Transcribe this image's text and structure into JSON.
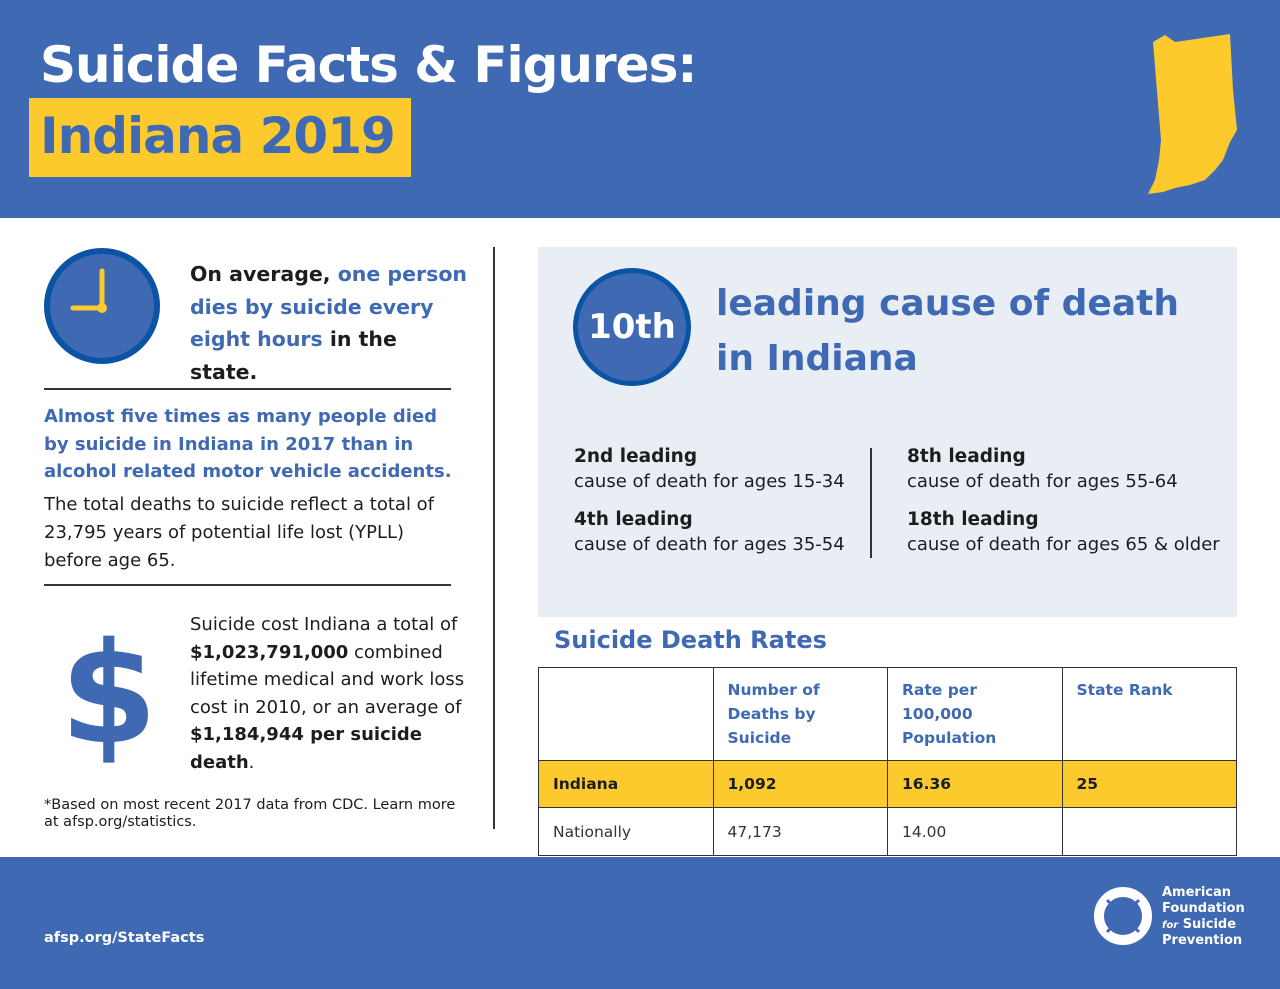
{
  "header": {
    "title": "Suicide Facts & Figures:",
    "subtitle": "Indiana 2019 *",
    "state_icon": "indiana-state-map-icon"
  },
  "colors": {
    "brand_blue": "#3f69b3",
    "accent_yellow": "#fdca2e",
    "dark_blue": "#0a53a5",
    "panel": "#e9eef5"
  },
  "clock_stat": {
    "icon": "clock-icon",
    "lead": "On average, ",
    "highlight": "one person dies by suicide every eight hours",
    "tail": " in the state."
  },
  "alcohol_stat": {
    "headline": "Almost five times as many people died by suicide in Indiana in 2017 than in alcohol related motor vehicle accidents.",
    "body": "The total deaths to suicide reflect a total of 23,795 years of potential life lost (YPLL) before age 65."
  },
  "cost_stat": {
    "icon": "dollar-icon",
    "p1": "Suicide cost Indiana a total of ",
    "total": "$1,023,791,000",
    "p2": " combined lifetime medical and work loss cost in 2010, or an average of ",
    "average": "$1,184,944 per suicide death",
    "p3": "."
  },
  "footnote": "*Based on most recent 2017 data from CDC. Learn more at afsp.org/statistics.",
  "rank": {
    "value": "10th",
    "text": "leading cause of death in Indiana"
  },
  "age_ranks": [
    {
      "rank": "2nd leading",
      "desc": "cause of death for ages 15-34"
    },
    {
      "rank": "4th leading",
      "desc": "cause of death for ages 35-54"
    },
    {
      "rank": "8th leading",
      "desc": "cause of death for ages 55-64"
    },
    {
      "rank": "18th leading",
      "desc": "cause of death for ages 65 & older"
    }
  ],
  "rates": {
    "title": "Suicide Death Rates",
    "columns": [
      "",
      "Number of Deaths by Suicide",
      "Rate per 100,000 Population",
      "State Rank"
    ],
    "rows": [
      [
        "Indiana",
        "1,092",
        "16.36",
        "25"
      ],
      [
        "Nationally",
        "47,173",
        "14.00",
        ""
      ]
    ]
  },
  "footer": {
    "url": "afsp.org/StateFacts",
    "logo_line1": "American",
    "logo_line2": "Foundation",
    "logo_for": "for",
    "logo_line3": "Suicide",
    "logo_line4": "Prevention"
  }
}
